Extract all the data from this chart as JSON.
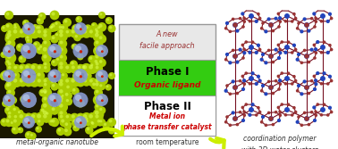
{
  "background_color": "#ffffff",
  "left_image_label": "metal-organic nanotube",
  "right_image_label": "coordination polymer\nwith 3D water clusters",
  "center_top_text_line1": "A new",
  "center_top_text_line2": "facile approach",
  "phase1_label": "Phase I",
  "phase1_sublabel": "Organic ligand",
  "phase2_label": "Phase II",
  "phase2_sublabel": "Metal ion\nphase transfer catalyst",
  "bottom_center_text": "room temperature",
  "box_outline_color": "#999999",
  "phase1_bg": "#33cc11",
  "top_bg": "#e8e8e8",
  "arrow_color": "#ccee00",
  "phase1_sublabel_color": "#cc0000",
  "phase2_sublabel_color": "#cc0000",
  "top_text_color": "#993333",
  "left_bg": "#1a1800",
  "yg_color": "#aacc00",
  "yg_hi": "#ddff55",
  "blue_color": "#8899cc",
  "blue_hi": "#bbccee",
  "red_dot": "#cc2200",
  "right_stick_color": "#771122",
  "right_node_blue": "#2244bb",
  "right_node_red": "#993333",
  "right_bg": "#ffffff"
}
